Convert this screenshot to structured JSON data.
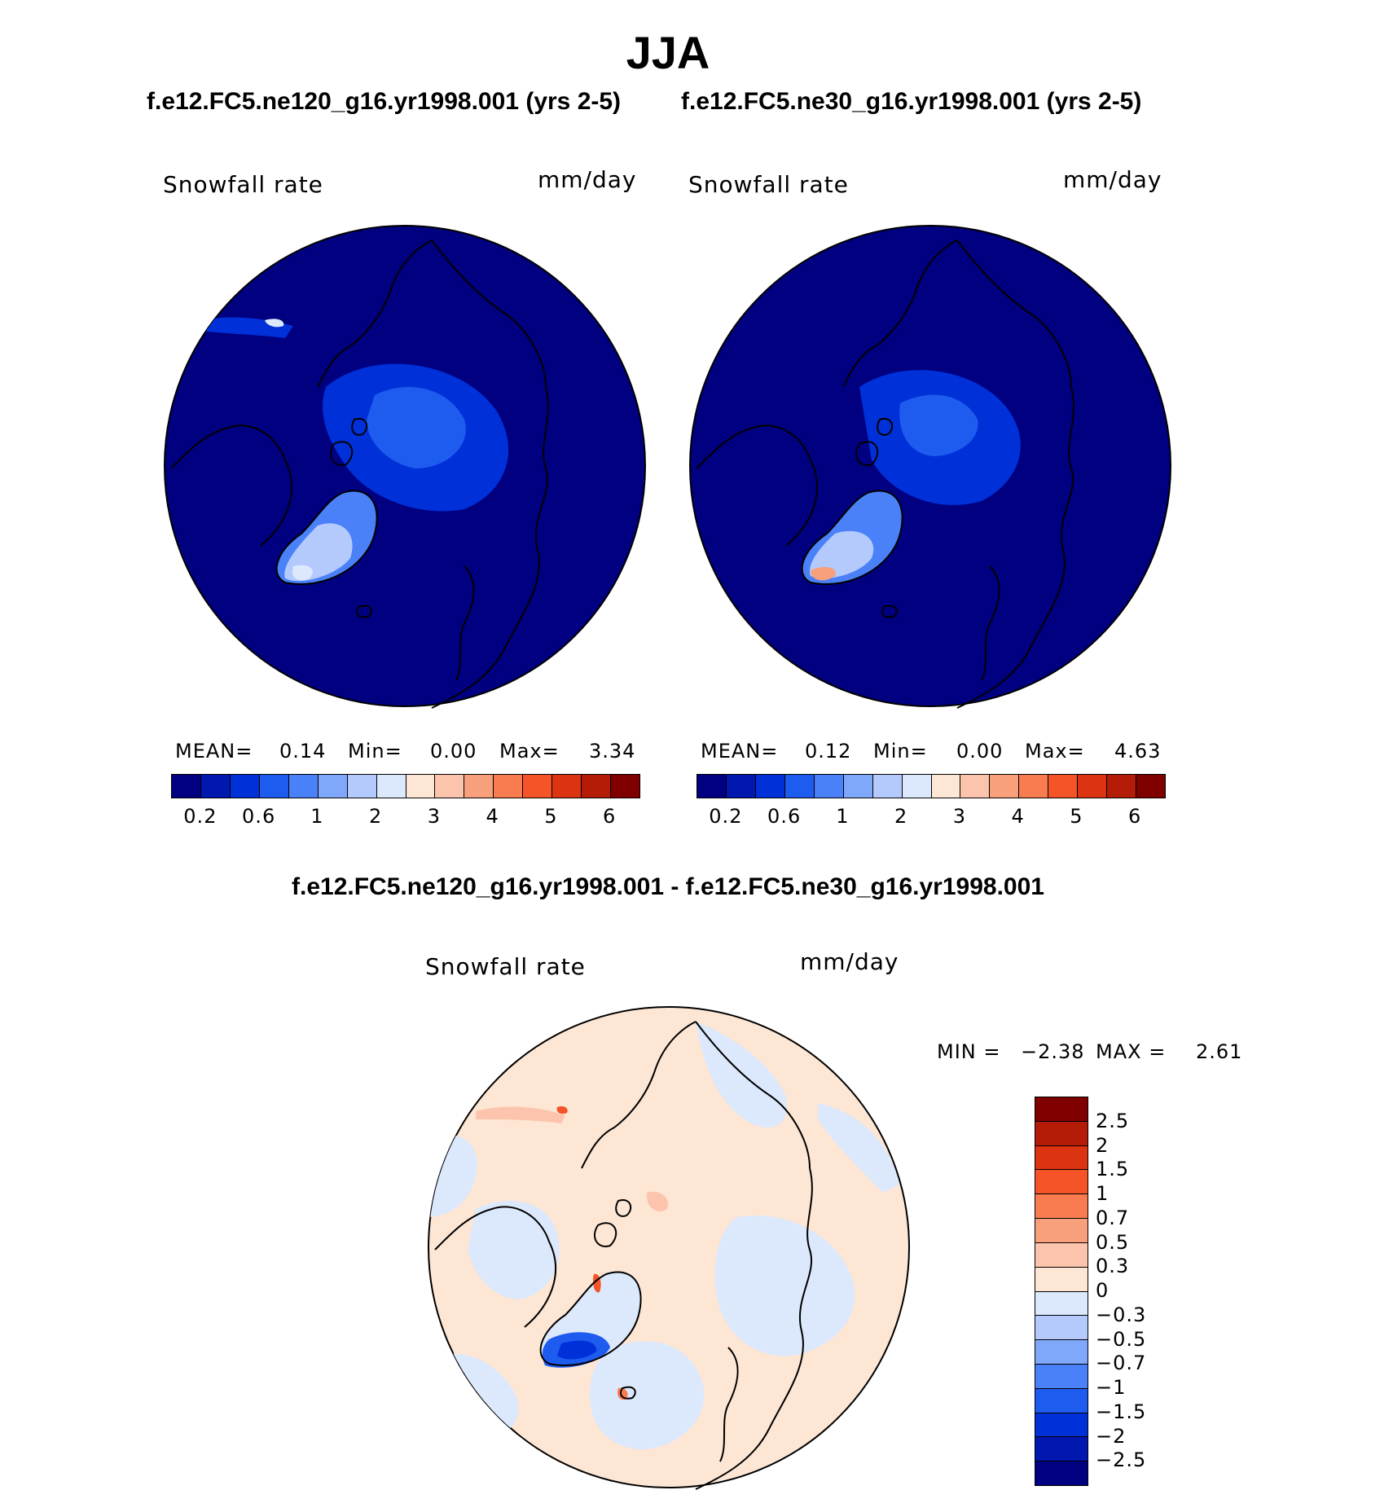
{
  "title": "JJA",
  "panels": [
    {
      "case_title": "f.e12.FC5.ne120_g16.yr1998.001 (yrs 2-5)",
      "variable_label": "Snowfall rate",
      "units_label": "mm/day",
      "stats": {
        "mean_label": "MEAN=",
        "mean": "0.14",
        "min_label": "Min=",
        "min": "0.00",
        "max_label": "Max=",
        "max": "3.34"
      }
    },
    {
      "case_title": "f.e12.FC5.ne30_g16.yr1998.001 (yrs 2-5)",
      "variable_label": "Snowfall rate",
      "units_label": "mm/day",
      "stats": {
        "mean_label": "MEAN=",
        "mean": "0.12",
        "min_label": "Min=",
        "min": "0.00",
        "max_label": "Max=",
        "max": "4.63"
      }
    }
  ],
  "colorbar": {
    "tick_labels": [
      "0.2",
      "0.6",
      "1",
      "2",
      "3",
      "4",
      "5",
      "6"
    ],
    "colors": [
      "#000080",
      "#0018b0",
      "#0030d8",
      "#1e5cf0",
      "#4a80f8",
      "#80a8fa",
      "#b4cafc",
      "#dce8fc",
      "#fde6d4",
      "#fcc4ac",
      "#f8a07c",
      "#f87c50",
      "#f45428",
      "#dc3410",
      "#b41c08",
      "#800000"
    ]
  },
  "difference": {
    "title": "f.e12.FC5.ne120_g16.yr1998.001 - f.e12.FC5.ne30_g16.yr1998.001",
    "variable_label": "Snowfall rate",
    "units_label": "mm/day",
    "min_max": {
      "min_label": "MIN =",
      "min": "−2.38",
      "max_label": "MAX =",
      "max": "2.61"
    },
    "tick_labels": [
      "2.5",
      "2",
      "1.5",
      "1",
      "0.7",
      "0.5",
      "0.3",
      "0",
      "−0.3",
      "−0.5",
      "−0.7",
      "−1",
      "−1.5",
      "−2",
      "−2.5"
    ],
    "colors": [
      "#800000",
      "#b41c08",
      "#dc3410",
      "#f45428",
      "#f87c50",
      "#f8a07c",
      "#fcc4ac",
      "#fde6d4",
      "#dce8fc",
      "#b4cafc",
      "#80a8fa",
      "#4a80f8",
      "#1e5cf0",
      "#0030d8",
      "#0018b0",
      "#000080"
    ]
  }
}
